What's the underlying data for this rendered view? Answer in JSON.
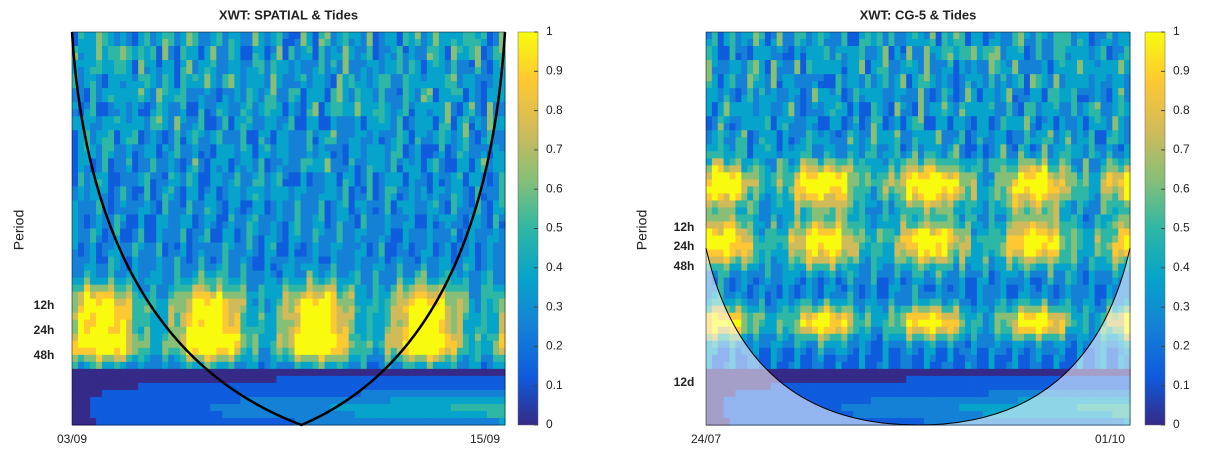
{
  "chart_data": [
    {
      "type": "heatmap",
      "title": "XWT: SPATIAL & Tides",
      "y_label": "Period",
      "y_tick_labels": [
        "12h",
        "24h",
        "48h"
      ],
      "x_tick_labels": [
        "03/09",
        "15/09"
      ],
      "colorbar_lim": [
        0,
        1
      ],
      "colorbar_ticks": [
        0,
        0.1,
        0.2,
        0.3,
        0.4,
        0.5,
        0.6,
        0.7,
        0.8,
        0.9,
        1
      ],
      "colormap": [
        "#352a87",
        "#0f5cdd",
        "#1481d6",
        "#06a4ca",
        "#2eb7a4",
        "#87bf77",
        "#d1bb59",
        "#fec832",
        "#f9fb0e"
      ]
    },
    {
      "type": "heatmap",
      "title": "XWT: CG-5 & Tides",
      "y_label": "Period",
      "y_tick_labels": [
        "12h",
        "24h",
        "48h",
        "12d"
      ],
      "x_tick_labels": [
        "24/07",
        "01/10"
      ],
      "colorbar_lim": [
        0,
        1
      ],
      "colorbar_ticks": [
        0,
        0.1,
        0.2,
        0.3,
        0.4,
        0.5,
        0.6,
        0.7,
        0.8,
        0.9,
        1
      ],
      "colormap": [
        "#352a87",
        "#0f5cdd",
        "#1481d6",
        "#06a4ca",
        "#2eb7a4",
        "#87bf77",
        "#d1bb59",
        "#fec832",
        "#f9fb0e"
      ]
    }
  ]
}
